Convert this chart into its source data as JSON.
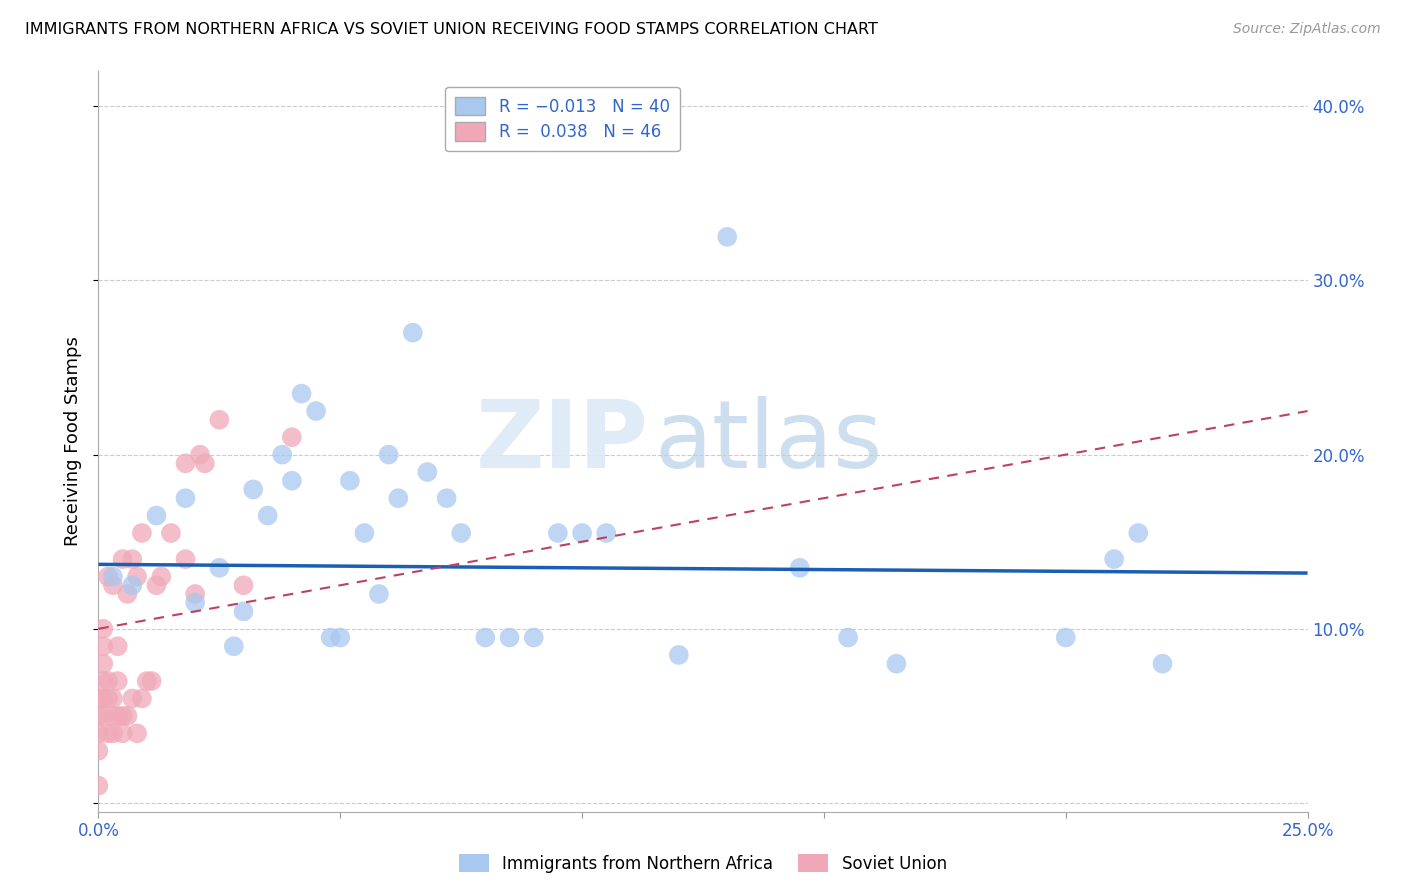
{
  "title": "IMMIGRANTS FROM NORTHERN AFRICA VS SOVIET UNION RECEIVING FOOD STAMPS CORRELATION CHART",
  "source": "Source: ZipAtlas.com",
  "ylabel": "Receiving Food Stamps",
  "xlim": [
    0.0,
    0.25
  ],
  "ylim": [
    -0.005,
    0.42
  ],
  "blue_R": -0.013,
  "blue_N": 40,
  "pink_R": 0.038,
  "pink_N": 46,
  "blue_color": "#a8c8f0",
  "pink_color": "#f0a8b8",
  "blue_line_color": "#1a5fb4",
  "pink_line_color": "#c04060",
  "legend_label_blue": "Immigrants from Northern Africa",
  "legend_label_pink": "Soviet Union",
  "watermark_zip": "ZIP",
  "watermark_atlas": "atlas",
  "blue_scatter_x": [
    0.003,
    0.007,
    0.012,
    0.018,
    0.02,
    0.025,
    0.028,
    0.03,
    0.032,
    0.035,
    0.038,
    0.04,
    0.042,
    0.045,
    0.048,
    0.05,
    0.052,
    0.055,
    0.058,
    0.06,
    0.062,
    0.065,
    0.068,
    0.072,
    0.075,
    0.08,
    0.085,
    0.09,
    0.095,
    0.1,
    0.105,
    0.12,
    0.13,
    0.145,
    0.155,
    0.165,
    0.2,
    0.21,
    0.215,
    0.22
  ],
  "blue_scatter_y": [
    0.13,
    0.125,
    0.165,
    0.175,
    0.115,
    0.135,
    0.09,
    0.11,
    0.18,
    0.165,
    0.2,
    0.185,
    0.235,
    0.225,
    0.095,
    0.095,
    0.185,
    0.155,
    0.12,
    0.2,
    0.175,
    0.27,
    0.19,
    0.175,
    0.155,
    0.095,
    0.095,
    0.095,
    0.155,
    0.155,
    0.155,
    0.085,
    0.325,
    0.135,
    0.095,
    0.08,
    0.095,
    0.14,
    0.155,
    0.08
  ],
  "pink_scatter_x": [
    0.0,
    0.0,
    0.0,
    0.0,
    0.0,
    0.001,
    0.001,
    0.001,
    0.001,
    0.001,
    0.001,
    0.002,
    0.002,
    0.002,
    0.002,
    0.003,
    0.003,
    0.003,
    0.003,
    0.004,
    0.004,
    0.004,
    0.005,
    0.005,
    0.005,
    0.006,
    0.006,
    0.007,
    0.007,
    0.008,
    0.008,
    0.009,
    0.009,
    0.01,
    0.011,
    0.012,
    0.013,
    0.015,
    0.018,
    0.018,
    0.02,
    0.021,
    0.022,
    0.025,
    0.03,
    0.04
  ],
  "pink_scatter_y": [
    0.01,
    0.03,
    0.04,
    0.05,
    0.06,
    0.05,
    0.06,
    0.07,
    0.08,
    0.09,
    0.1,
    0.04,
    0.06,
    0.07,
    0.13,
    0.04,
    0.05,
    0.06,
    0.125,
    0.05,
    0.07,
    0.09,
    0.04,
    0.05,
    0.14,
    0.05,
    0.12,
    0.06,
    0.14,
    0.04,
    0.13,
    0.06,
    0.155,
    0.07,
    0.07,
    0.125,
    0.13,
    0.155,
    0.14,
    0.195,
    0.12,
    0.2,
    0.195,
    0.22,
    0.125,
    0.21
  ],
  "blue_line_y_start": 0.137,
  "blue_line_y_end": 0.132,
  "pink_line_y_start": 0.1,
  "pink_line_y_end": 0.225,
  "title_fontsize": 11.5,
  "source_fontsize": 10,
  "tick_fontsize": 12,
  "ylabel_fontsize": 13
}
